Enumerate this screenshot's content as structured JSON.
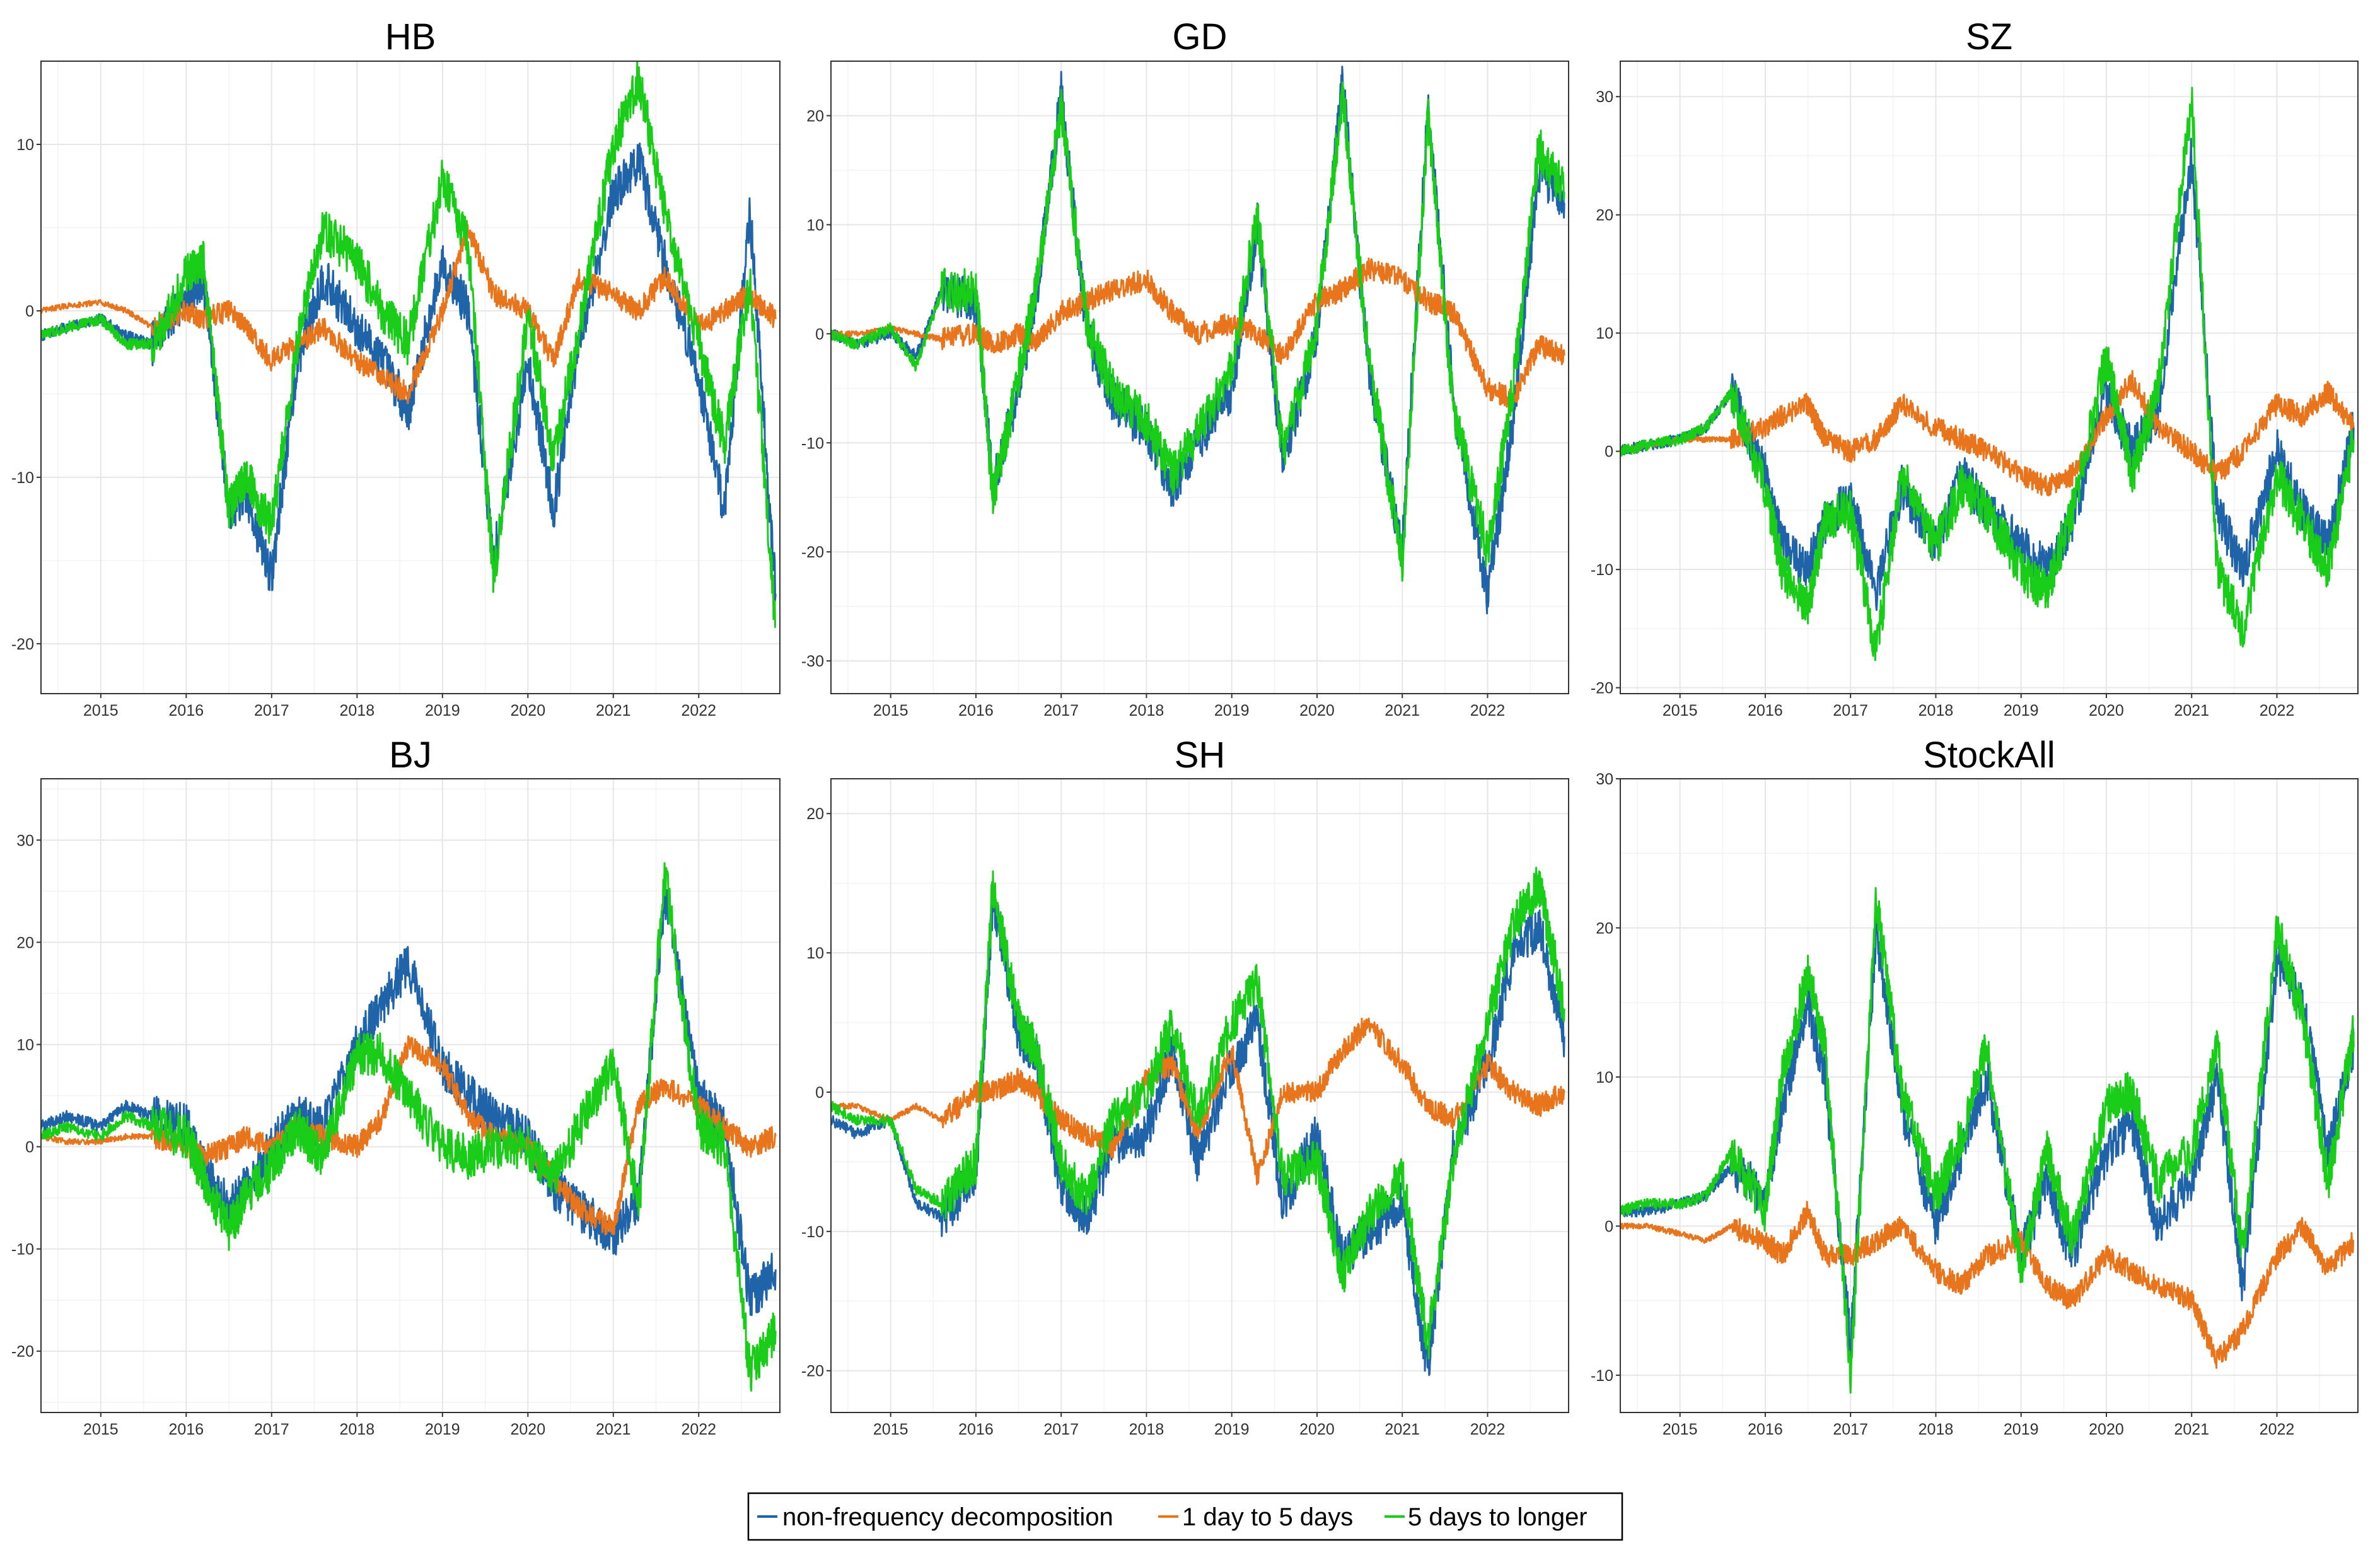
{
  "legend": [
    {
      "label": "non-frequency decomposition",
      "color": "#1F63A8"
    },
    {
      "label": "1 day to 5 days",
      "color": "#E8741C"
    },
    {
      "label": "5 days to longer",
      "color": "#18CC18"
    }
  ],
  "chart_data": [
    {
      "type": "line",
      "title": "HB",
      "x": [
        2014.3,
        2014.6,
        2015.0,
        2015.3,
        2015.6,
        2016.0,
        2016.2,
        2016.5,
        2016.7,
        2017.0,
        2017.3,
        2017.6,
        2018.0,
        2018.3,
        2018.6,
        2019.0,
        2019.3,
        2019.6,
        2020.0,
        2020.3,
        2020.6,
        2021.0,
        2021.3,
        2021.6,
        2022.0,
        2022.3,
        2022.6,
        2022.9
      ],
      "xlim": [
        2014.3,
        2022.95
      ],
      "ylim": [
        -23,
        15
      ],
      "xticks": [
        "2015",
        "2016",
        "2017",
        "2018",
        "2019",
        "2020",
        "2021",
        "2022"
      ],
      "yticks": [
        "-20",
        "-10",
        "0",
        "10"
      ],
      "series": [
        {
          "name": "non-frequency decomposition",
          "values": [
            -1.5,
            -1,
            -0.5,
            -1.5,
            -2,
            1,
            2,
            -12,
            -11,
            -16,
            -3,
            2,
            -1,
            -3,
            -6,
            3,
            0,
            -15,
            -3,
            -12,
            -2,
            7,
            9,
            3,
            -4,
            -12,
            6,
            -17
          ]
        },
        {
          "name": "1 day to 5 days",
          "values": [
            0,
            0.3,
            0.5,
            0,
            -1,
            0,
            -0.5,
            0,
            -1,
            -3,
            -2,
            -1,
            -3,
            -4,
            -5,
            0,
            5,
            1,
            0,
            -3,
            2,
            1,
            0,
            2,
            -1,
            0,
            1,
            -0.5
          ]
        },
        {
          "name": "5 days to longer",
          "values": [
            -1.5,
            -1,
            -0.5,
            -2,
            -2,
            2,
            3,
            -12,
            -10,
            -13,
            -2,
            5,
            3,
            0,
            -2,
            8,
            4,
            -16,
            0,
            -9,
            -1,
            10,
            14,
            6,
            -2,
            -8,
            2,
            -19
          ]
        }
      ]
    },
    {
      "type": "line",
      "title": "GD",
      "x": [
        2014.3,
        2014.6,
        2015.0,
        2015.3,
        2015.6,
        2016.0,
        2016.2,
        2016.5,
        2016.7,
        2017.0,
        2017.3,
        2017.6,
        2018.0,
        2018.3,
        2018.6,
        2019.0,
        2019.3,
        2019.6,
        2020.0,
        2020.3,
        2020.6,
        2021.0,
        2021.3,
        2021.6,
        2022.0,
        2022.3,
        2022.6,
        2022.9
      ],
      "xlim": [
        2014.3,
        2022.95
      ],
      "ylim": [
        -33,
        25
      ],
      "xticks": [
        "2015",
        "2016",
        "2017",
        "2018",
        "2019",
        "2020",
        "2021",
        "2022"
      ],
      "yticks": [
        "-30",
        "-20",
        "-10",
        "0",
        "10",
        "20"
      ],
      "series": [
        {
          "name": "non-frequency decomposition",
          "values": [
            0,
            -1,
            0,
            -2,
            4,
            3,
            -14,
            -5,
            3,
            22,
            0,
            -6,
            -9,
            -14,
            -10,
            -5,
            10,
            -12,
            0,
            23,
            -3,
            -20,
            21,
            -6,
            -24,
            -8,
            15,
            12
          ]
        },
        {
          "name": "1 day to 5 days",
          "values": [
            0,
            0,
            0.5,
            0,
            -0.5,
            0,
            -1,
            0,
            -1,
            2,
            3,
            4,
            5,
            2,
            0,
            1,
            0,
            -2,
            3,
            4,
            6,
            5,
            3,
            2,
            -5,
            -6,
            -1,
            -2
          ]
        },
        {
          "name": "5 days to longer",
          "values": [
            0,
            -1,
            0.5,
            -3,
            4,
            4,
            -15,
            -4,
            4,
            21,
            1,
            -5,
            -8,
            -13,
            -9,
            -3,
            11,
            -11,
            1,
            22,
            -2,
            -21,
            20,
            -7,
            -20,
            -5,
            17,
            13
          ]
        }
      ]
    },
    {
      "type": "line",
      "title": "SZ",
      "x": [
        2014.3,
        2014.6,
        2015.0,
        2015.3,
        2015.6,
        2016.0,
        2016.2,
        2016.5,
        2016.7,
        2017.0,
        2017.3,
        2017.6,
        2018.0,
        2018.3,
        2018.6,
        2019.0,
        2019.3,
        2019.6,
        2020.0,
        2020.3,
        2020.6,
        2021.0,
        2021.3,
        2021.6,
        2022.0,
        2022.3,
        2022.6,
        2022.9
      ],
      "xlim": [
        2014.3,
        2022.95
      ],
      "ylim": [
        -20.5,
        33
      ],
      "xticks": [
        "2015",
        "2016",
        "2017",
        "2018",
        "2019",
        "2020",
        "2021",
        "2022"
      ],
      "yticks": [
        "-20",
        "-10",
        "0",
        "10",
        "20",
        "30"
      ],
      "series": [
        {
          "name": "non-frequency decomposition",
          "values": [
            0,
            0.5,
            1,
            2,
            5,
            -2,
            -8,
            -10,
            -6,
            -4,
            -12,
            -3,
            -8,
            -2,
            -5,
            -8,
            -10,
            -6,
            5,
            0,
            3,
            25,
            -5,
            -10,
            0,
            -5,
            -8,
            2
          ]
        },
        {
          "name": "1 day to 5 days",
          "values": [
            0,
            0.5,
            1,
            1,
            1,
            2,
            3,
            4,
            1,
            0,
            1,
            4,
            2,
            1,
            0,
            -2,
            -3,
            -2,
            3,
            6,
            2,
            0,
            -2,
            0,
            4,
            3,
            5,
            2
          ]
        },
        {
          "name": "5 days to longer",
          "values": [
            0,
            0.5,
            1,
            2,
            5,
            -3,
            -10,
            -13,
            -6,
            -5,
            -17,
            -2,
            -8,
            -3,
            -5,
            -10,
            -12,
            -5,
            8,
            -2,
            5,
            30,
            -10,
            -15,
            -2,
            -6,
            -10,
            1
          ]
        }
      ]
    },
    {
      "type": "line",
      "title": "BJ",
      "x": [
        2014.3,
        2014.6,
        2015.0,
        2015.3,
        2015.6,
        2016.0,
        2016.2,
        2016.5,
        2016.7,
        2017.0,
        2017.3,
        2017.6,
        2018.0,
        2018.3,
        2018.6,
        2019.0,
        2019.3,
        2019.6,
        2020.0,
        2020.3,
        2020.6,
        2021.0,
        2021.3,
        2021.6,
        2022.0,
        2022.3,
        2022.6,
        2022.9
      ],
      "xlim": [
        2014.3,
        2022.95
      ],
      "ylim": [
        -26,
        36
      ],
      "xticks": [
        "2015",
        "2016",
        "2017",
        "2018",
        "2019",
        "2020",
        "2021",
        "2022"
      ],
      "yticks": [
        "-20",
        "-10",
        "0",
        "10",
        "20",
        "30"
      ],
      "series": [
        {
          "name": "non-frequency decomposition",
          "values": [
            2,
            3,
            2,
            4,
            3,
            2,
            -2,
            -6,
            -4,
            0,
            3,
            2,
            10,
            14,
            18,
            8,
            5,
            3,
            1,
            -4,
            -6,
            -9,
            -5,
            25,
            5,
            2,
            -15,
            -12
          ]
        },
        {
          "name": "1 day to 5 days",
          "values": [
            1,
            0.5,
            0.5,
            1,
            1,
            0,
            -1,
            0,
            1,
            0,
            2,
            1,
            0,
            3,
            10,
            8,
            3,
            1,
            0,
            -3,
            -6,
            -8,
            4,
            6,
            4,
            2,
            0,
            1
          ]
        },
        {
          "name": "5 days to longer",
          "values": [
            1,
            2,
            1,
            3,
            2,
            1,
            -3,
            -8,
            -5,
            -2,
            2,
            -1,
            9,
            9,
            5,
            0,
            -1,
            0,
            0,
            -3,
            2,
            8,
            -6,
            27,
            2,
            0,
            -22,
            -18
          ]
        }
      ]
    },
    {
      "type": "line",
      "title": "SH",
      "x": [
        2014.3,
        2014.6,
        2015.0,
        2015.3,
        2015.6,
        2016.0,
        2016.2,
        2016.5,
        2016.7,
        2017.0,
        2017.3,
        2017.6,
        2018.0,
        2018.3,
        2018.6,
        2019.0,
        2019.3,
        2019.6,
        2020.0,
        2020.3,
        2020.6,
        2021.0,
        2021.3,
        2021.6,
        2022.0,
        2022.3,
        2022.6,
        2022.9
      ],
      "xlim": [
        2014.3,
        2022.95
      ],
      "ylim": [
        -23,
        22.5
      ],
      "xticks": [
        "2015",
        "2016",
        "2017",
        "2018",
        "2019",
        "2020",
        "2021",
        "2022"
      ],
      "yticks": [
        "-20",
        "-10",
        "0",
        "10",
        "20"
      ],
      "series": [
        {
          "name": "non-frequency decomposition",
          "values": [
            -2,
            -3,
            -2,
            -8,
            -9,
            -6,
            14,
            4,
            3,
            -7,
            -9,
            -4,
            -3,
            3,
            -5,
            2,
            5,
            -8,
            -3,
            -12,
            -10,
            -8,
            -20,
            -4,
            2,
            10,
            12,
            4
          ]
        },
        {
          "name": "1 day to 5 days",
          "values": [
            -1,
            -1,
            -2,
            -1,
            -2,
            0,
            0,
            1,
            0,
            -2,
            -3,
            -4,
            1,
            2,
            -3,
            3,
            -6,
            0,
            0,
            3,
            5,
            2,
            -1,
            -2,
            2,
            0,
            -1,
            0
          ]
        },
        {
          "name": "5 days to longer",
          "values": [
            -1,
            -2,
            -2,
            -7,
            -8,
            -5,
            15,
            5,
            3,
            -5,
            -8,
            -2,
            0,
            5,
            -2,
            5,
            8,
            -6,
            -5,
            -13,
            -9,
            -6,
            -18,
            -5,
            5,
            12,
            15,
            6
          ]
        }
      ]
    },
    {
      "type": "line",
      "title": "StockAll",
      "x": [
        2014.3,
        2014.6,
        2015.0,
        2015.3,
        2015.6,
        2016.0,
        2016.2,
        2016.5,
        2016.7,
        2017.0,
        2017.3,
        2017.6,
        2018.0,
        2018.3,
        2018.6,
        2019.0,
        2019.3,
        2019.6,
        2020.0,
        2020.3,
        2020.6,
        2021.0,
        2021.3,
        2021.6,
        2022.0,
        2022.3,
        2022.6,
        2022.9
      ],
      "xlim": [
        2014.3,
        2022.95
      ],
      "ylim": [
        -12.5,
        30
      ],
      "xticks": [
        "2015",
        "2016",
        "2017",
        "2018",
        "2019",
        "2020",
        "2021",
        "2022"
      ],
      "yticks": [
        "-10",
        "0",
        "10",
        "20",
        "30"
      ],
      "series": [
        {
          "name": "non-frequency decomposition",
          "values": [
            1,
            1,
            1.5,
            2,
            4,
            2,
            8,
            15,
            10,
            -8,
            20,
            8,
            0,
            5,
            10,
            -2,
            3,
            -2,
            5,
            7,
            0,
            3,
            10,
            -4,
            18,
            15,
            5,
            12
          ]
        },
        {
          "name": "1 day to 5 days",
          "values": [
            0,
            0,
            -0.5,
            -1,
            0,
            -1,
            -2,
            1,
            -2,
            -2,
            -1,
            0,
            -3,
            -4,
            -2,
            -1,
            -4,
            -5,
            -2,
            -3,
            -4,
            -5,
            -9,
            -7,
            -2,
            0,
            -3,
            -1
          ]
        },
        {
          "name": "5 days to longer",
          "values": [
            1,
            1.5,
            1.5,
            2,
            5,
            1,
            10,
            17,
            12,
            -10,
            22,
            9,
            2,
            6,
            12,
            -3,
            5,
            -1,
            8,
            9,
            3,
            5,
            12,
            -2,
            20,
            14,
            3,
            13
          ]
        }
      ]
    }
  ]
}
